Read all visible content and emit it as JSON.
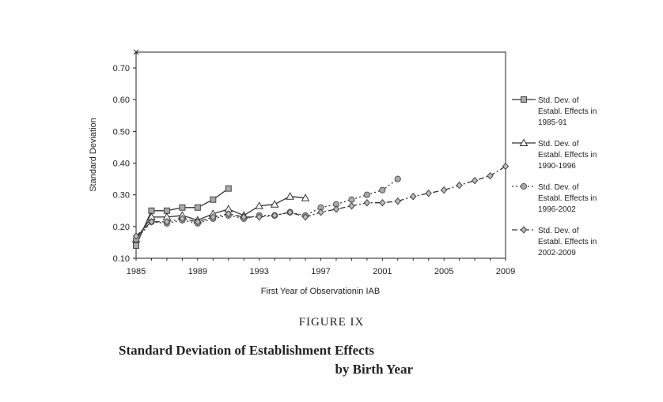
{
  "figure_label": "FIGURE IX",
  "caption_line1": "Standard Deviation of Establishment Effects",
  "caption_line2": "by Birth Year",
  "chart_data": {
    "type": "line",
    "xlabel": "First Year of Observationin IAB",
    "ylabel": "Standard Deviation",
    "xlim": [
      1985,
      2009
    ],
    "ylim": [
      0.1,
      0.75
    ],
    "x_ticks": [
      "1985",
      "1989",
      "1993",
      "1997",
      "2001",
      "2005",
      "2009"
    ],
    "y_ticks": [
      "0.10",
      "0.20",
      "0.30",
      "0.40",
      "0.50",
      "0.60",
      "0.70"
    ],
    "legend_position": "right",
    "series": [
      {
        "name": "Std. Dev. of Establ. Effects in 1985-91",
        "legend_lines": [
          "Std. Dev. of",
          "Establ. Effects in",
          "1985-91"
        ],
        "marker": "square",
        "line": "solid",
        "x": [
          1985,
          1986,
          1987,
          1988,
          1989,
          1990,
          1991
        ],
        "y": [
          0.14,
          0.25,
          0.25,
          0.26,
          0.26,
          0.285,
          0.32
        ]
      },
      {
        "name": "Std. Dev. of Establ. Effects in 1990-1996",
        "legend_lines": [
          "Std. Dev. of",
          "Establ. Effects in",
          "1990-1996"
        ],
        "marker": "triangle",
        "line": "solid",
        "x": [
          1985,
          1986,
          1987,
          1988,
          1989,
          1990,
          1991,
          1992,
          1993,
          1994,
          1995,
          1996
        ],
        "y": [
          0.16,
          0.23,
          0.23,
          0.235,
          0.22,
          0.24,
          0.255,
          0.235,
          0.265,
          0.27,
          0.295,
          0.29
        ]
      },
      {
        "name": "Std. Dev. of Establ. Effects in 1996-2002",
        "legend_lines": [
          "Std. Dev. of",
          "Establ. Effects in",
          "1996-2002"
        ],
        "marker": "circle",
        "line": "dotted",
        "x": [
          1985,
          1986,
          1987,
          1988,
          1989,
          1990,
          1991,
          1992,
          1993,
          1994,
          1995,
          1996,
          1997,
          1998,
          1999,
          2000,
          2001,
          2002
        ],
        "y": [
          0.16,
          0.215,
          0.21,
          0.22,
          0.21,
          0.225,
          0.235,
          0.225,
          0.235,
          0.235,
          0.245,
          0.235,
          0.26,
          0.27,
          0.285,
          0.3,
          0.315,
          0.35
        ]
      },
      {
        "name": "Std. Dev. of Establ. Effects in 2002-2009",
        "legend_lines": [
          "Std. Dev. of",
          "Establ. Effects in",
          "2002-2009"
        ],
        "marker": "diamond",
        "line": "dashdot",
        "x": [
          1985,
          1986,
          1987,
          1988,
          1989,
          1990,
          1991,
          1992,
          1993,
          1994,
          1995,
          1996,
          1997,
          1998,
          1999,
          2000,
          2001,
          2002,
          2003,
          2004,
          2005,
          2006,
          2007,
          2008,
          2009
        ],
        "y": [
          0.17,
          0.215,
          0.215,
          0.225,
          0.215,
          0.23,
          0.24,
          0.23,
          0.23,
          0.235,
          0.245,
          0.23,
          0.245,
          0.255,
          0.265,
          0.275,
          0.275,
          0.28,
          0.295,
          0.305,
          0.315,
          0.33,
          0.345,
          0.36,
          0.39
        ]
      }
    ]
  }
}
